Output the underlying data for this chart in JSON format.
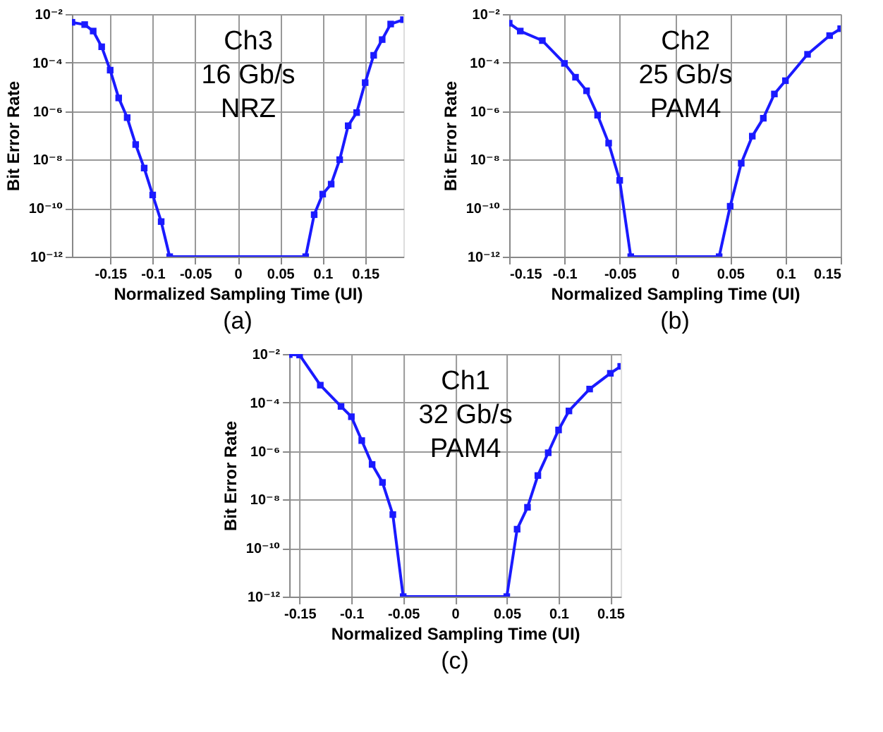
{
  "chart_data": [
    {
      "type": "line",
      "title": "(a)",
      "xlabel": "Normalized Sampling Time (UI)",
      "ylabel": "Bit Error Rate",
      "annotations": [
        "Ch3\n16 Gb/s\nNRZ"
      ],
      "x": [
        -0.195,
        -0.18,
        -0.17,
        -0.16,
        -0.15,
        -0.14,
        -0.13,
        -0.12,
        -0.11,
        -0.1,
        -0.09,
        -0.08,
        0.08,
        0.09,
        0.1,
        0.11,
        0.12,
        0.13,
        0.14,
        0.15,
        0.16,
        0.17,
        0.18,
        0.195
      ],
      "series": [
        {
          "color": "#1a1aff",
          "values": [
            0.0046,
            0.0037,
            0.002,
            0.00045,
            4.9e-05,
            3.5e-06,
            5.4e-07,
            4.2e-08,
            4.5e-09,
            3.5e-10,
            2.8e-11,
            1e-12,
            1e-12,
            5.4e-11,
            3.8e-10,
            9.8e-10,
            1e-08,
            2.5e-07,
            8.7e-07,
            1.5e-05,
            0.0002,
            0.00089,
            0.0039,
            0.0059
          ]
        }
      ],
      "log": true,
      "xlim": [
        -0.195,
        0.195
      ],
      "ylim": [
        1e-12,
        0.01
      ],
      "xticks": [
        -0.15,
        -0.1,
        -0.05,
        0,
        0.05,
        0.1,
        0.15
      ],
      "yticks": [
        {
          "value": 1e-12,
          "label": "10⁻¹²"
        },
        {
          "value": 1e-10,
          "label": "10⁻¹⁰"
        },
        {
          "value": 1e-08,
          "label": "10⁻⁸"
        },
        {
          "value": 1e-06,
          "label": "10⁻⁶"
        },
        {
          "value": 0.0001,
          "label": "10⁻⁴"
        },
        {
          "value": 0.01,
          "label": "10⁻²"
        }
      ],
      "grid": true,
      "marker": "square",
      "line_style": "solid"
    },
    {
      "type": "line",
      "title": "(b)",
      "xlabel": "Normalized Sampling Time (UI)",
      "ylabel": "Bit Error Rate",
      "annotations": [
        "Ch2\n25 Gb/s\nPAM4"
      ],
      "x": [
        -0.15,
        -0.14,
        -0.12,
        -0.1,
        -0.09,
        -0.08,
        -0.07,
        -0.06,
        -0.05,
        -0.04,
        0.04,
        0.05,
        0.06,
        0.07,
        0.08,
        0.09,
        0.1,
        0.12,
        0.14,
        0.15
      ],
      "series": [
        {
          "color": "#1a1aff",
          "values": [
            0.0042,
            0.002,
            0.00081,
            9.3e-05,
            2.5e-05,
            6.9e-06,
            6.8e-07,
            4.8e-08,
            1.4e-09,
            1e-12,
            1e-12,
            1.2e-10,
            7.1e-09,
            9.3e-08,
            5.1e-07,
            5.1e-06,
            1.8e-05,
            0.00022,
            0.0013,
            0.0025
          ]
        }
      ],
      "log": true,
      "xlim": [
        -0.15,
        0.15
      ],
      "ylim": [
        1e-12,
        0.01
      ],
      "xticks": [
        -0.15,
        -0.1,
        -0.05,
        0,
        0.05,
        0.1,
        0.15
      ],
      "yticks": [
        {
          "value": 1e-12,
          "label": "10⁻¹²"
        },
        {
          "value": 1e-10,
          "label": "10⁻¹⁰"
        },
        {
          "value": 1e-08,
          "label": "10⁻⁸"
        },
        {
          "value": 1e-06,
          "label": "10⁻⁶"
        },
        {
          "value": 0.0001,
          "label": "10⁻⁴"
        },
        {
          "value": 0.01,
          "label": "10⁻²"
        }
      ],
      "grid": true,
      "marker": "square",
      "line_style": "solid"
    },
    {
      "type": "line",
      "title": "(c)",
      "xlabel": "Normalized Sampling Time (UI)",
      "ylabel": "Bit Error Rate",
      "annotations": [
        "Ch1\n32 Gb/s\nPAM4"
      ],
      "x": [
        -0.16,
        -0.15,
        -0.13,
        -0.11,
        -0.1,
        -0.09,
        -0.08,
        -0.07,
        -0.06,
        -0.05,
        0.05,
        0.06,
        0.07,
        0.08,
        0.09,
        0.1,
        0.11,
        0.13,
        0.15,
        0.16
      ],
      "series": [
        {
          "color": "#1a1aff",
          "values": [
            0.0095,
            0.0091,
            0.00052,
            6.9e-05,
            2.6e-05,
            2.7e-06,
            2.8e-07,
            5.1e-08,
            2.4e-09,
            1e-12,
            1e-12,
            6e-10,
            4.8e-09,
            9.8e-08,
            8.5e-07,
            7.4e-06,
            4.5e-05,
            0.00036,
            0.0016,
            0.0031
          ]
        }
      ],
      "log": true,
      "xlim": [
        -0.16,
        0.16
      ],
      "ylim": [
        1e-12,
        0.01
      ],
      "xticks": [
        -0.15,
        -0.1,
        -0.05,
        0,
        0.05,
        0.1,
        0.15
      ],
      "yticks": [
        {
          "value": 1e-12,
          "label": "10⁻¹²"
        },
        {
          "value": 1e-10,
          "label": "10⁻¹⁰"
        },
        {
          "value": 1e-08,
          "label": "10⁻⁸"
        },
        {
          "value": 1e-06,
          "label": "10⁻⁶"
        },
        {
          "value": 0.0001,
          "label": "10⁻⁴"
        },
        {
          "value": 0.01,
          "label": "10⁻²"
        }
      ],
      "grid": true,
      "marker": "square",
      "line_style": "solid"
    }
  ]
}
